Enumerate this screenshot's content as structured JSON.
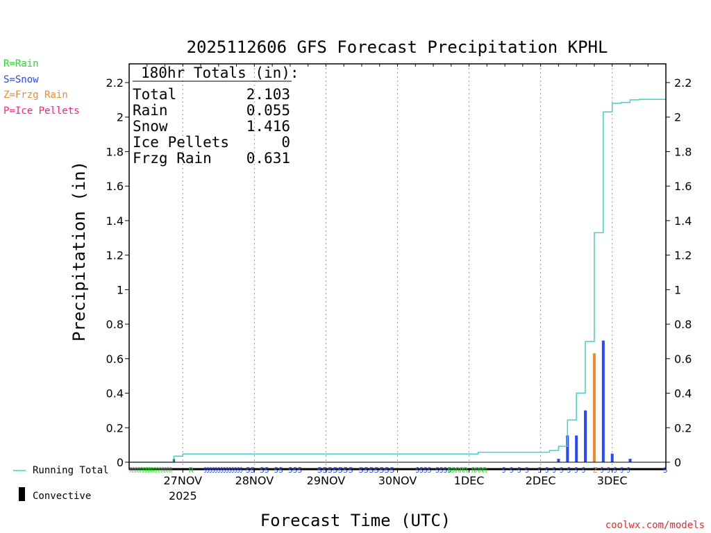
{
  "chart_data": {
    "type": "bar",
    "title": "2025112606 GFS Forecast Precipitation KPHL",
    "xlabel": "Forecast Time (UTC)",
    "ylabel": "Precipitation (in)",
    "ylim": [
      0,
      2.3
    ],
    "yticks": [
      0,
      0.2,
      0.4,
      0.6,
      0.8,
      1,
      1.2,
      1.4,
      1.6,
      1.8,
      2,
      2.2
    ],
    "ytick_labels": [
      "0",
      "0.2",
      "0.4",
      "0.6",
      "0.8",
      "1",
      "1.2",
      "1.4",
      "1.6",
      "1.8",
      "2",
      "2.2"
    ],
    "xlim_hours": [
      0,
      180
    ],
    "day_ticks": [
      {
        "hour": 18,
        "label": "27NOV",
        "sublabel": "2025"
      },
      {
        "hour": 42,
        "label": "28NOV",
        "sublabel": ""
      },
      {
        "hour": 66,
        "label": "29NOV",
        "sublabel": ""
      },
      {
        "hour": 90,
        "label": "30NOV",
        "sublabel": ""
      },
      {
        "hour": 114,
        "label": "1DEC",
        "sublabel": ""
      },
      {
        "hour": 138,
        "label": "2DEC",
        "sublabel": ""
      },
      {
        "hour": 162,
        "label": "3DEC",
        "sublabel": ""
      }
    ],
    "series": [
      {
        "name": "Running Total",
        "color": "#40d0c8",
        "hours": [
          0,
          12,
          15,
          18,
          114,
          117,
          138,
          141,
          144,
          147,
          150,
          153,
          156,
          159,
          162,
          165,
          168,
          171,
          180
        ],
        "values": [
          0,
          0,
          0.035,
          0.048,
          0.048,
          0.058,
          0.058,
          0.068,
          0.092,
          0.245,
          0.4,
          0.7,
          1.33,
          2.03,
          2.08,
          2.085,
          2.1,
          2.103,
          2.103
        ]
      },
      {
        "name": "Precipitation bars",
        "bars": [
          {
            "hour": 15,
            "value": 0.018,
            "type": "convective"
          },
          {
            "hour": 144,
            "value": 0.02,
            "type": "S"
          },
          {
            "hour": 147,
            "value": 0.155,
            "type": "S"
          },
          {
            "hour": 150,
            "value": 0.155,
            "type": "S"
          },
          {
            "hour": 153,
            "value": 0.3,
            "type": "S"
          },
          {
            "hour": 156,
            "value": 0.631,
            "type": "Z"
          },
          {
            "hour": 159,
            "value": 0.705,
            "type": "S"
          },
          {
            "hour": 162,
            "value": 0.05,
            "type": "S"
          },
          {
            "hour": 168,
            "value": 0.02,
            "type": "S"
          }
        ]
      }
    ],
    "ptype_strips": [
      {
        "text": "RRRRRRRRRRRRRRRR",
        "start_hour": 0.2,
        "end_hour": 14.5,
        "type": "R"
      },
      {
        "text": "R",
        "start_hour": 20,
        "end_hour": 20.5,
        "type": "R"
      },
      {
        "text": "SSSSSSSSSSSSSS",
        "start_hour": 25,
        "end_hour": 38,
        "type": "S"
      },
      {
        "text": "SS SS SS SSS",
        "start_hour": 39,
        "end_hour": 58,
        "type": "S"
      },
      {
        "text": "SSSSSSS SSSSSSS",
        "start_hour": 63,
        "end_hour": 89,
        "type": "S"
      },
      {
        "text": "SSSS SSSS",
        "start_hour": 96,
        "end_hour": 108,
        "type": "S"
      },
      {
        "text": "RRRRR RRRR",
        "start_hour": 107,
        "end_hour": 120,
        "type": "R"
      },
      {
        "text": "S S S S",
        "start_hour": 125,
        "end_hour": 134,
        "type": "S"
      },
      {
        "text": "S S S S S S S",
        "start_hour": 137,
        "end_hour": 153,
        "type": "S"
      },
      {
        "text": "Z",
        "start_hour": 155.5,
        "end_hour": 156.5,
        "type": "Z"
      },
      {
        "text": "S S S S S",
        "start_hour": 158,
        "end_hour": 168,
        "type": "S"
      },
      {
        "text": "S",
        "start_hour": 179,
        "end_hour": 180,
        "type": "S"
      }
    ],
    "totals_box": {
      "header": "180hr Totals (in):",
      "rows": [
        {
          "label": "Total",
          "value": "2.103"
        },
        {
          "label": "Rain",
          "value": "0.055"
        },
        {
          "label": "Snow",
          "value": "1.416"
        },
        {
          "label": "Ice Pellets",
          "value": "0"
        },
        {
          "label": "Frzg Rain",
          "value": "0.631"
        }
      ]
    },
    "ptype_legend": [
      {
        "text": "R=Rain",
        "color": "#20e020"
      },
      {
        "text": "S=Snow",
        "color": "#2848ff"
      },
      {
        "text": "Z=Frzg Rain",
        "color": "#f08a30"
      },
      {
        "text": "P=Ice Pellets",
        "color": "#ff2080"
      }
    ],
    "bottom_legend": {
      "running_total": "Running Total",
      "convective": "Convective"
    },
    "credit": "coolwx.com/models",
    "colors": {
      "R": "#20e020",
      "S": "#2848ff",
      "Z": "#f08a30",
      "P": "#ff2080",
      "convective": "#000000",
      "running_total": "#40d0c8",
      "credit": "#e03030"
    }
  }
}
